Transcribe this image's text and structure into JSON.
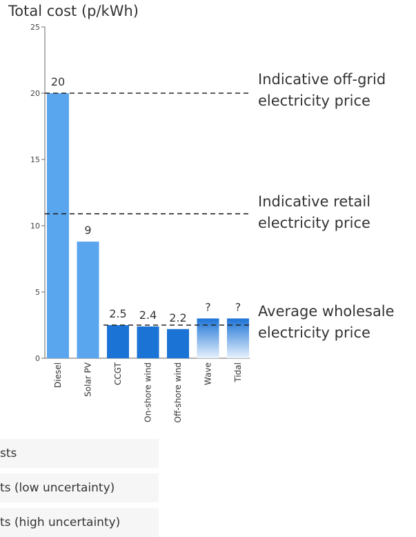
{
  "chart_data": {
    "type": "bar",
    "ylabel": "Total cost (p/kWh)",
    "ylim": [
      0,
      25
    ],
    "yticks": [
      "0",
      "5",
      "10",
      "15",
      "20",
      "25"
    ],
    "categories": [
      "Diesel",
      "Solar PV",
      "CCGT",
      "On-shore wind",
      "Off-shore wind",
      "Wave",
      "Tidal"
    ],
    "values": [
      20,
      8.8,
      2.5,
      2.4,
      2.2,
      3.0,
      3.0
    ],
    "data_labels": [
      "20",
      "9",
      "2.5",
      "2.4",
      "2.2",
      "?",
      "?"
    ],
    "bar_kinds": [
      "light",
      "light",
      "dark",
      "dark",
      "dark",
      "gradient",
      "gradient"
    ],
    "colors": {
      "light": "#5aa6ee",
      "dark": "#1c73d6",
      "gradient_top": "#1c73d6",
      "gradient_bottom": "#e8f2fc"
    },
    "reference_lines": [
      {
        "value": 20,
        "label_line1": "Indicative off-grid",
        "label_line2": "electricity price"
      },
      {
        "value": 10.9,
        "label_line1": "Indicative retail",
        "label_line2": "electricity price"
      },
      {
        "value": 2.5,
        "label_line1": "Average wholesale",
        "label_line2": "electricity price"
      }
    ],
    "legend": [
      "sts",
      "ts (low uncertainty)",
      "ts (high uncertainty)"
    ]
  }
}
